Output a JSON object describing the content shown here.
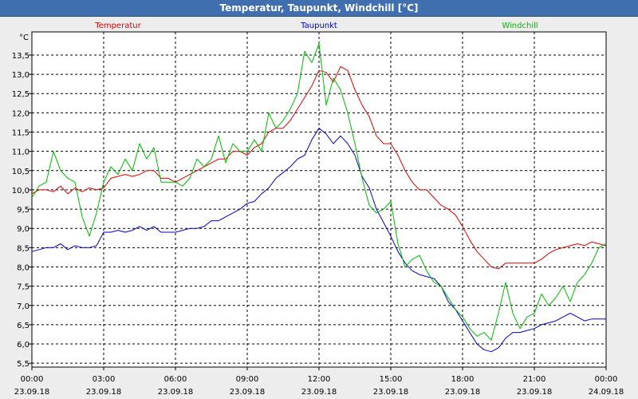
{
  "window": {
    "title": "Temperatur, Taupunkt, Windchill [°C]"
  },
  "colors": {
    "background": "#ededed",
    "titlebar": "#3f6fae",
    "temperatur": "#dd0000",
    "taupunkt": "#0000cc",
    "windchill": "#00bb00",
    "grid": "#000000"
  },
  "chart_data": {
    "type": "line",
    "title": "Temperatur, Taupunkt, Windchill [°C]",
    "unit_label": "°C",
    "xlabel": "",
    "ylabel": "°C",
    "ylim": [
      5.4,
      14.1
    ],
    "xlim": [
      0,
      24
    ],
    "grid": true,
    "yticks": [
      5.5,
      6.0,
      6.5,
      7.0,
      7.5,
      8.0,
      8.5,
      9.0,
      9.5,
      10.0,
      10.5,
      11.0,
      11.5,
      12.0,
      12.5,
      13.0,
      13.5
    ],
    "ytick_labels": [
      "5,5",
      "6,0",
      "6,5",
      "7,0",
      "7,5",
      "8,0",
      "8,5",
      "9,0",
      "9,5",
      "10,0",
      "10,5",
      "11,0",
      "11,5",
      "12,0",
      "12,5",
      "13,0",
      "13,5"
    ],
    "xticks": [
      {
        "value": 0,
        "time": "00:00",
        "date": "23.09.18"
      },
      {
        "value": 3,
        "time": "03:00",
        "date": "23.09.18"
      },
      {
        "value": 6,
        "time": "06:00",
        "date": "23.09.18"
      },
      {
        "value": 9,
        "time": "09:00",
        "date": "23.09.18"
      },
      {
        "value": 12,
        "time": "12:00",
        "date": "23.09.18"
      },
      {
        "value": 15,
        "time": "15:00",
        "date": "23.09.18"
      },
      {
        "value": 18,
        "time": "18:00",
        "date": "23.09.18"
      },
      {
        "value": 21,
        "time": "21:00",
        "date": "23.09.18"
      },
      {
        "value": 24,
        "time": "00:00",
        "date": "24.09.18"
      }
    ],
    "series": [
      {
        "name": "Temperatur",
        "color": "#dd0000",
        "legend_position": "left",
        "x": [
          0,
          0.3,
          0.6,
          0.9,
          1.2,
          1.5,
          1.8,
          2.1,
          2.4,
          2.7,
          3,
          3.3,
          3.6,
          3.9,
          4.2,
          4.5,
          4.8,
          5.1,
          5.4,
          5.7,
          6,
          6.3,
          6.6,
          6.9,
          7.2,
          7.5,
          7.8,
          8.1,
          8.4,
          8.7,
          9,
          9.3,
          9.6,
          9.9,
          10.2,
          10.5,
          10.8,
          11.1,
          11.4,
          11.7,
          12,
          12.3,
          12.6,
          12.9,
          13.2,
          13.5,
          13.8,
          14.1,
          14.4,
          14.7,
          15,
          15.3,
          15.6,
          15.9,
          16.2,
          16.5,
          16.8,
          17.1,
          17.4,
          17.7,
          18,
          18.3,
          18.6,
          18.9,
          19.2,
          19.5,
          19.8,
          20.1,
          20.4,
          20.7,
          21,
          21.3,
          21.6,
          21.9,
          22.2,
          22.5,
          22.8,
          23.1,
          23.4,
          23.7,
          24
        ],
        "values": [
          9.9,
          10.0,
          10.0,
          9.95,
          10.1,
          9.9,
          10.05,
          9.95,
          10.05,
          10.0,
          10.05,
          10.3,
          10.35,
          10.4,
          10.35,
          10.4,
          10.5,
          10.5,
          10.3,
          10.3,
          10.2,
          10.3,
          10.4,
          10.5,
          10.6,
          10.7,
          10.8,
          10.8,
          11.0,
          11.0,
          10.9,
          11.1,
          11.2,
          11.5,
          11.6,
          11.6,
          11.8,
          12.1,
          12.4,
          12.7,
          13.1,
          13.05,
          12.8,
          13.2,
          13.1,
          12.6,
          12.2,
          11.9,
          11.4,
          11.2,
          11.2,
          10.9,
          10.5,
          10.2,
          10.0,
          10.0,
          9.8,
          9.6,
          9.5,
          9.35,
          9.05,
          8.7,
          8.4,
          8.2,
          8.0,
          7.95,
          8.1,
          8.1,
          8.1,
          8.1,
          8.1,
          8.2,
          8.35,
          8.45,
          8.5,
          8.55,
          8.6,
          8.55,
          8.65,
          8.6,
          8.55
        ]
      },
      {
        "name": "Taupunkt",
        "color": "#0000cc",
        "legend_position": "center",
        "x": [
          0,
          0.3,
          0.6,
          0.9,
          1.2,
          1.5,
          1.8,
          2.1,
          2.4,
          2.7,
          3,
          3.3,
          3.6,
          3.9,
          4.2,
          4.5,
          4.8,
          5.1,
          5.4,
          5.7,
          6,
          6.3,
          6.6,
          6.9,
          7.2,
          7.5,
          7.8,
          8.1,
          8.4,
          8.7,
          9,
          9.3,
          9.6,
          9.9,
          10.2,
          10.5,
          10.8,
          11.1,
          11.4,
          11.7,
          12,
          12.3,
          12.6,
          12.9,
          13.2,
          13.5,
          13.8,
          14.1,
          14.4,
          14.7,
          15,
          15.3,
          15.6,
          15.9,
          16.2,
          16.5,
          16.8,
          17.1,
          17.4,
          17.7,
          18,
          18.3,
          18.6,
          18.9,
          19.2,
          19.5,
          19.8,
          20.1,
          20.4,
          20.7,
          21,
          21.3,
          21.6,
          21.9,
          22.2,
          22.5,
          22.8,
          23.1,
          23.4,
          23.7,
          24
        ],
        "values": [
          8.4,
          8.45,
          8.5,
          8.5,
          8.6,
          8.45,
          8.55,
          8.5,
          8.5,
          8.55,
          8.9,
          8.9,
          8.95,
          8.9,
          8.95,
          9.05,
          8.95,
          9.05,
          8.9,
          8.9,
          8.9,
          8.95,
          9.0,
          9.0,
          9.05,
          9.2,
          9.2,
          9.3,
          9.4,
          9.5,
          9.65,
          9.7,
          9.9,
          10.05,
          10.3,
          10.45,
          10.6,
          10.8,
          10.9,
          11.3,
          11.6,
          11.45,
          11.2,
          11.4,
          11.2,
          10.9,
          10.35,
          10.05,
          9.5,
          9.15,
          8.8,
          8.4,
          8.1,
          7.9,
          7.8,
          7.75,
          7.7,
          7.5,
          7.1,
          6.9,
          6.6,
          6.3,
          6.0,
          5.85,
          5.8,
          5.9,
          6.15,
          6.3,
          6.3,
          6.35,
          6.4,
          6.5,
          6.55,
          6.6,
          6.7,
          6.8,
          6.7,
          6.6,
          6.65,
          6.65,
          6.65
        ]
      },
      {
        "name": "Windchill",
        "color": "#00bb00",
        "legend_position": "right",
        "x": [
          0,
          0.3,
          0.6,
          0.9,
          1.2,
          1.5,
          1.8,
          2.1,
          2.4,
          2.7,
          3,
          3.3,
          3.6,
          3.9,
          4.2,
          4.5,
          4.8,
          5.1,
          5.4,
          5.7,
          6,
          6.3,
          6.6,
          6.9,
          7.2,
          7.5,
          7.8,
          8.1,
          8.4,
          8.7,
          9,
          9.3,
          9.6,
          9.9,
          10.2,
          10.5,
          10.8,
          11.1,
          11.4,
          11.7,
          12,
          12.3,
          12.6,
          12.9,
          13.2,
          13.5,
          13.8,
          14.1,
          14.4,
          14.7,
          15,
          15.3,
          15.6,
          15.9,
          16.2,
          16.5,
          16.8,
          17.1,
          17.4,
          17.7,
          18,
          18.3,
          18.6,
          18.9,
          19.2,
          19.5,
          19.8,
          20.1,
          20.4,
          20.7,
          21,
          21.3,
          21.6,
          21.9,
          22.2,
          22.5,
          22.8,
          23.1,
          23.4,
          23.7,
          24
        ],
        "values": [
          9.8,
          10.1,
          10.2,
          11.0,
          10.5,
          10.3,
          10.2,
          9.3,
          8.8,
          9.4,
          10.2,
          10.6,
          10.4,
          10.8,
          10.5,
          11.2,
          10.8,
          11.1,
          10.2,
          10.2,
          10.2,
          10.1,
          10.3,
          10.8,
          10.6,
          10.8,
          11.4,
          10.7,
          11.2,
          11.0,
          11.0,
          11.3,
          11.0,
          12.0,
          11.6,
          11.8,
          12.1,
          12.5,
          13.6,
          13.3,
          13.8,
          12.2,
          12.9,
          12.6,
          12.0,
          11.2,
          10.3,
          9.6,
          9.4,
          9.5,
          9.7,
          8.6,
          8.0,
          8.2,
          8.3,
          7.9,
          7.6,
          7.5,
          7.2,
          6.9,
          6.7,
          6.4,
          6.2,
          6.3,
          6.1,
          6.8,
          7.6,
          6.8,
          6.4,
          6.7,
          6.8,
          7.3,
          7.0,
          7.2,
          7.5,
          7.1,
          7.6,
          7.8,
          8.1,
          8.5,
          8.6
        ]
      }
    ]
  }
}
